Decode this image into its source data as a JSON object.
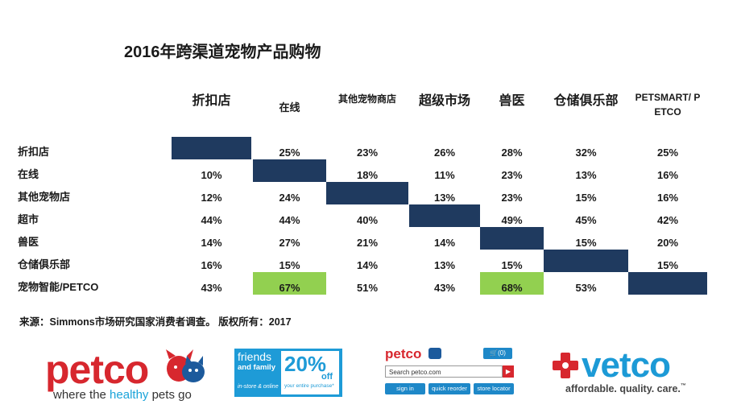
{
  "title": "2016年跨渠道宠物产品购物",
  "columns": [
    {
      "label": "折扣店"
    },
    {
      "label": "在线"
    },
    {
      "label": "其他宠物商店"
    },
    {
      "label": "超级市场"
    },
    {
      "label": "兽医"
    },
    {
      "label": "仓储俱乐部"
    },
    {
      "label": "PETSMART/ P\nETCO"
    }
  ],
  "rows": [
    {
      "label": "折扣店",
      "cells": [
        "",
        "25%",
        "23%",
        "26%",
        "28%",
        "32%",
        "25%"
      ]
    },
    {
      "label": "在线",
      "cells": [
        "10%",
        "",
        "18%",
        "11%",
        "23%",
        "13%",
        "16%"
      ]
    },
    {
      "label": "其他宠物店",
      "cells": [
        "12%",
        "24%",
        "",
        "13%",
        "23%",
        "15%",
        "16%"
      ]
    },
    {
      "label": "超市",
      "cells": [
        "44%",
        "44%",
        "40%",
        "",
        "49%",
        "45%",
        "42%"
      ]
    },
    {
      "label": "兽医",
      "cells": [
        "14%",
        "27%",
        "21%",
        "14%",
        "",
        "15%",
        "20%"
      ]
    },
    {
      "label": "仓储俱乐部",
      "cells": [
        "16%",
        "15%",
        "14%",
        "13%",
        "15%",
        "",
        "15%"
      ]
    },
    {
      "label": "宠物智能/PETCO",
      "cells": [
        "43%",
        "67%",
        "51%",
        "43%",
        "68%",
        "53%",
        ""
      ]
    }
  ],
  "source": "来源：Simmons市场研究国家消费者调查。 版权所有：2017",
  "colors": {
    "diagonal": "#1f3a5f",
    "highlight": "#92d050",
    "petco_red": "#d7272e",
    "vetco_blue": "#1c9ad6"
  },
  "logos": {
    "petco": {
      "word": "petco",
      "tag_a": "where the ",
      "tag_b": "healthy",
      "tag_c": " pets go"
    },
    "ad": {
      "line1": "friends",
      "line2": "and family",
      "line3": "in-store & online",
      "pct": "20%",
      "off": "off",
      "desc": "your entire purchase*"
    },
    "site": {
      "brand": "petco",
      "cart": "(0)",
      "search": "Search petco.com",
      "btn1": "sign in",
      "btn2": "quick reorder",
      "btn3": "store locator"
    },
    "vetco": {
      "word": "vetco",
      "tag": "affordable. quality. care.",
      "tm": "™"
    }
  }
}
